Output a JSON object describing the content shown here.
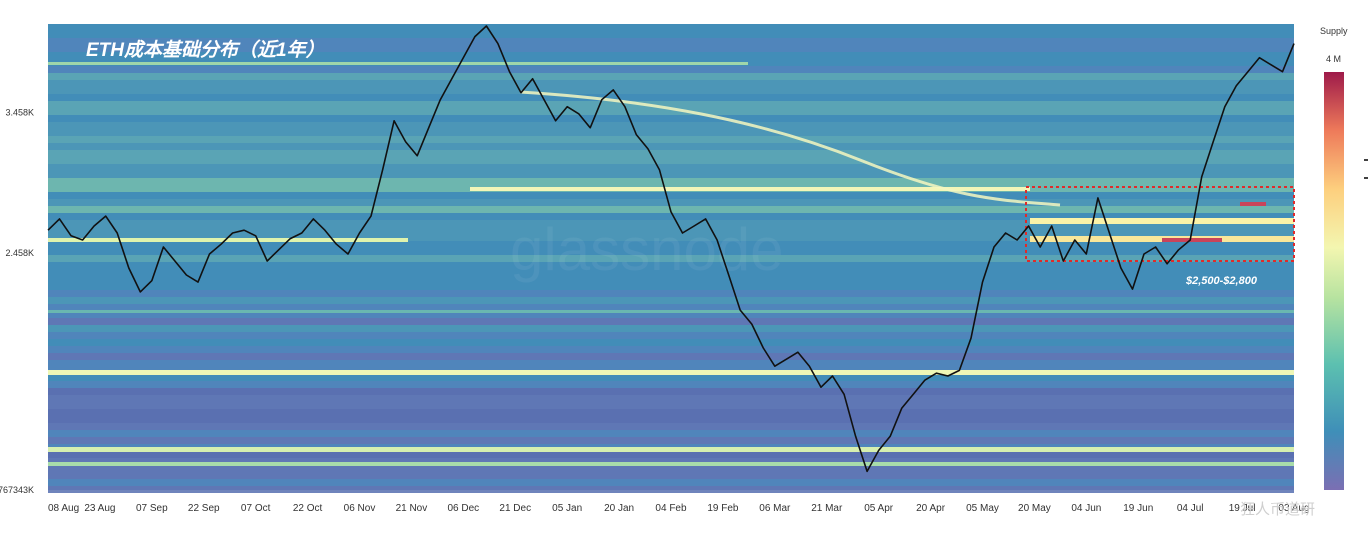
{
  "chart_data": {
    "type": "heatmap",
    "title": "ETH成本基础分布（近1年）",
    "watermark": "glassnode",
    "corner_watermark": "狂人币道研",
    "y_ticks": [
      {
        "label": "3.458K",
        "value": 3458
      },
      {
        "label": "2.458K",
        "value": 2458
      },
      {
        "label": "767343K",
        "value": 767.343
      }
    ],
    "x_ticks": [
      "08 Aug",
      "23 Aug",
      "07 Sep",
      "22 Sep",
      "07 Oct",
      "22 Oct",
      "06 Nov",
      "21 Nov",
      "06 Dec",
      "21 Dec",
      "05 Jan",
      "20 Jan",
      "04 Feb",
      "19 Feb",
      "06 Mar",
      "21 Mar",
      "05 Apr",
      "20 Apr",
      "05 May",
      "20 May",
      "04 Jun",
      "19 Jun",
      "04 Jul",
      "19 Jul",
      "03 Aug"
    ],
    "legend": {
      "title": "Supply",
      "max_label": "4 M",
      "position": "right",
      "colors": [
        "#8a8fc7",
        "#3f8fb8",
        "#7cc7a8",
        "#e6f59a",
        "#fde08a",
        "#f49a66",
        "#c9445a",
        "#9e1a4a"
      ]
    },
    "annotation": {
      "label": "$2,500-$2,800",
      "price_low": 2500,
      "price_high": 2800,
      "x_start": "20 May",
      "x_end": "06 Aug"
    },
    "price_line_color": "#111111",
    "ylim": [
      767.343,
      4090
    ],
    "series": [
      {
        "name": "ETH",
        "values": [
          2620,
          2700,
          2580,
          2550,
          2650,
          2720,
          2600,
          2350,
          2180,
          2260,
          2500,
          2400,
          2300,
          2250,
          2450,
          2520,
          2600,
          2620,
          2580,
          2400,
          2480,
          2560,
          2600,
          2700,
          2620,
          2520,
          2450,
          2600,
          2720,
          3050,
          3400,
          3250,
          3150,
          3350,
          3550,
          3700,
          3850,
          4000,
          4090,
          3950,
          3750,
          3600,
          3700,
          3550,
          3400,
          3500,
          3450,
          3350,
          3550,
          3620,
          3500,
          3300,
          3200,
          3050,
          2750,
          2600,
          2650,
          2700,
          2550,
          2300,
          2050,
          1950,
          1780,
          1650,
          1700,
          1750,
          1650,
          1500,
          1580,
          1450,
          1150,
          900,
          1050,
          1150,
          1350,
          1450,
          1550,
          1600,
          1580,
          1620,
          1850,
          2250,
          2500,
          2600,
          2550,
          2650,
          2500,
          2650,
          2400,
          2550,
          2450,
          2850,
          2600,
          2350,
          2200,
          2450,
          2500,
          2380,
          2480,
          2550,
          3000,
          3250,
          3500,
          3650,
          3750,
          3850,
          3800,
          3750,
          3950
        ]
      }
    ]
  }
}
